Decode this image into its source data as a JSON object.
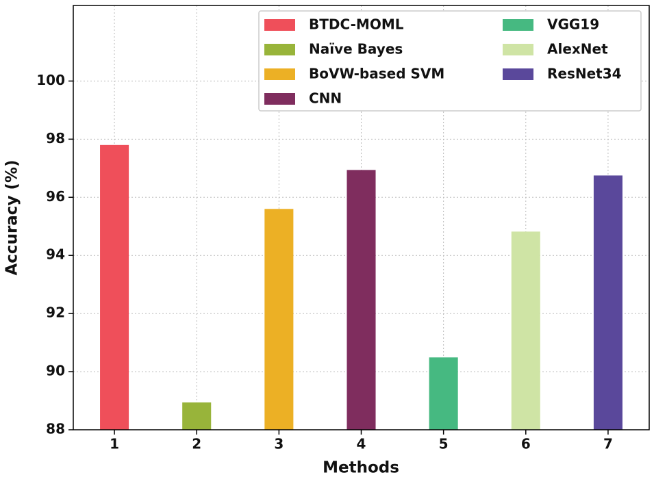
{
  "chart_data": {
    "type": "bar",
    "xlabel": "Methods",
    "ylabel": "Accuracy (%)",
    "xlim": [
      0.5,
      7.5
    ],
    "xticks": [
      1,
      2,
      3,
      4,
      5,
      6,
      7
    ],
    "ylim": [
      88,
      102.6
    ],
    "yticks": [
      88,
      90,
      92,
      94,
      96,
      98,
      100
    ],
    "grid": true,
    "legend": "upper right",
    "legend_columns": 2,
    "series": [
      {
        "name": "BTDC-MOML",
        "color": "#ef4f5a",
        "x": [
          1
        ],
        "values": [
          97.8
        ]
      },
      {
        "name": "Naïve Bayes",
        "color": "#98b43a",
        "x": [
          2
        ],
        "values": [
          88.94
        ]
      },
      {
        "name": "BoVW-based SVM",
        "color": "#ecb025",
        "x": [
          3
        ],
        "values": [
          95.6
        ]
      },
      {
        "name": "CNN",
        "color": "#7f2d5e",
        "x": [
          4
        ],
        "values": [
          96.94
        ]
      },
      {
        "name": "VGG19",
        "color": "#46b981",
        "x": [
          5
        ],
        "values": [
          90.49
        ]
      },
      {
        "name": "AlexNet",
        "color": "#cfe4a5",
        "x": [
          6
        ],
        "values": [
          94.82
        ]
      },
      {
        "name": "ResNet34",
        "color": "#5a489b",
        "x": [
          7
        ],
        "values": [
          96.75
        ]
      }
    ]
  }
}
